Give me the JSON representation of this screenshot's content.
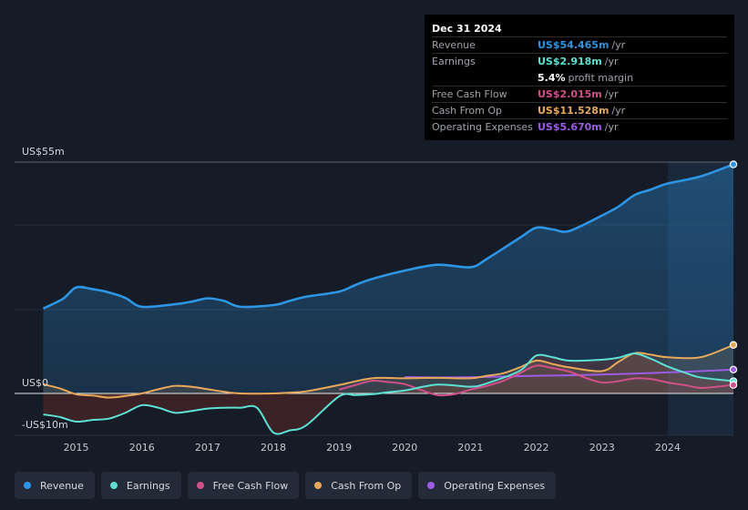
{
  "chart_data": {
    "type": "line",
    "y_unit_labels": {
      "top": "US$55m",
      "zero": "US$0",
      "bottom": "-US$10m"
    },
    "ylim": [
      -10,
      55
    ],
    "xlim": [
      2014.5,
      2025.0
    ],
    "x_ticks": [
      "2015",
      "2016",
      "2017",
      "2018",
      "2019",
      "2020",
      "2021",
      "2022",
      "2023",
      "2024"
    ],
    "forecast_shade_start": 2024.0,
    "series": [
      {
        "name": "Revenue",
        "key": "revenue",
        "color": "#2d95e3",
        "fill": true,
        "points": [
          [
            2014.5,
            20.2
          ],
          [
            2014.8,
            22.5
          ],
          [
            2015.0,
            25.2
          ],
          [
            2015.25,
            24.8
          ],
          [
            2015.5,
            24.0
          ],
          [
            2015.75,
            22.7
          ],
          [
            2016.0,
            20.6
          ],
          [
            2016.5,
            21.2
          ],
          [
            2016.75,
            21.8
          ],
          [
            2017.0,
            22.6
          ],
          [
            2017.25,
            22.0
          ],
          [
            2017.5,
            20.6
          ],
          [
            2018.0,
            21.0
          ],
          [
            2018.25,
            22.0
          ],
          [
            2018.5,
            23.0
          ],
          [
            2019.0,
            24.2
          ],
          [
            2019.25,
            25.8
          ],
          [
            2019.5,
            27.2
          ],
          [
            2020.0,
            29.2
          ],
          [
            2020.5,
            30.6
          ],
          [
            2021.0,
            30.0
          ],
          [
            2021.25,
            32.0
          ],
          [
            2021.75,
            37.0
          ],
          [
            2022.0,
            39.4
          ],
          [
            2022.25,
            39.0
          ],
          [
            2022.5,
            38.6
          ],
          [
            2023.0,
            42.3
          ],
          [
            2023.25,
            44.4
          ],
          [
            2023.5,
            47.2
          ],
          [
            2023.75,
            48.5
          ],
          [
            2024.0,
            49.9
          ],
          [
            2024.5,
            51.6
          ],
          [
            2025.0,
            54.465
          ]
        ]
      },
      {
        "name": "Earnings",
        "key": "earnings",
        "color": "#5ee0d3",
        "fill": true,
        "points": [
          [
            2014.5,
            -5.0
          ],
          [
            2014.75,
            -5.6
          ],
          [
            2015.0,
            -6.7
          ],
          [
            2015.25,
            -6.3
          ],
          [
            2015.5,
            -6.0
          ],
          [
            2015.75,
            -4.6
          ],
          [
            2016.0,
            -2.8
          ],
          [
            2016.25,
            -3.4
          ],
          [
            2016.5,
            -4.6
          ],
          [
            2016.75,
            -4.2
          ],
          [
            2017.0,
            -3.6
          ],
          [
            2017.25,
            -3.4
          ],
          [
            2017.5,
            -3.4
          ],
          [
            2017.75,
            -3.4
          ],
          [
            2018.0,
            -9.3
          ],
          [
            2018.25,
            -8.8
          ],
          [
            2018.5,
            -7.6
          ],
          [
            2019.0,
            -0.7
          ],
          [
            2019.25,
            -0.4
          ],
          [
            2019.5,
            -0.2
          ],
          [
            2019.75,
            0.3
          ],
          [
            2020.0,
            0.7
          ],
          [
            2020.5,
            2.1
          ],
          [
            2021.0,
            1.6
          ],
          [
            2021.25,
            2.4
          ],
          [
            2021.75,
            5.4
          ],
          [
            2022.0,
            9.0
          ],
          [
            2022.25,
            8.6
          ],
          [
            2022.5,
            7.8
          ],
          [
            2023.0,
            8.0
          ],
          [
            2023.25,
            8.5
          ],
          [
            2023.5,
            9.5
          ],
          [
            2023.75,
            8.2
          ],
          [
            2024.0,
            6.4
          ],
          [
            2024.25,
            5.0
          ],
          [
            2024.5,
            3.8
          ],
          [
            2025.0,
            2.918
          ]
        ]
      },
      {
        "name": "Free Cash Flow",
        "key": "fcf",
        "color": "#d0508a",
        "fill": false,
        "points": [
          [
            2019.0,
            0.9
          ],
          [
            2019.25,
            2.0
          ],
          [
            2019.5,
            3.0
          ],
          [
            2019.75,
            2.7
          ],
          [
            2020.0,
            2.2
          ],
          [
            2020.25,
            0.8
          ],
          [
            2020.5,
            -0.4
          ],
          [
            2020.75,
            -0.2
          ],
          [
            2021.0,
            0.9
          ],
          [
            2021.25,
            1.8
          ],
          [
            2021.5,
            3.0
          ],
          [
            2021.75,
            4.8
          ],
          [
            2022.0,
            6.6
          ],
          [
            2022.25,
            6.0
          ],
          [
            2022.5,
            5.2
          ],
          [
            2023.0,
            2.6
          ],
          [
            2023.5,
            3.6
          ],
          [
            2023.75,
            3.4
          ],
          [
            2024.0,
            2.6
          ],
          [
            2024.25,
            2.0
          ],
          [
            2024.5,
            1.3
          ],
          [
            2024.75,
            1.6
          ],
          [
            2025.0,
            2.015
          ]
        ]
      },
      {
        "name": "Cash From Op",
        "key": "cfo",
        "color": "#e8a85a",
        "fill": true,
        "points": [
          [
            2014.5,
            2.2
          ],
          [
            2014.75,
            1.2
          ],
          [
            2015.0,
            -0.2
          ],
          [
            2015.25,
            -0.5
          ],
          [
            2015.5,
            -1.0
          ],
          [
            2015.75,
            -0.6
          ],
          [
            2016.0,
            0.0
          ],
          [
            2016.25,
            1.0
          ],
          [
            2016.5,
            1.8
          ],
          [
            2016.75,
            1.6
          ],
          [
            2017.0,
            1.0
          ],
          [
            2017.25,
            0.4
          ],
          [
            2017.5,
            0.0
          ],
          [
            2018.0,
            0.0
          ],
          [
            2018.25,
            0.2
          ],
          [
            2018.5,
            0.5
          ],
          [
            2019.0,
            2.0
          ],
          [
            2019.5,
            3.6
          ],
          [
            2020.0,
            3.6
          ],
          [
            2020.5,
            3.7
          ],
          [
            2021.0,
            3.6
          ],
          [
            2021.25,
            4.2
          ],
          [
            2021.5,
            4.8
          ],
          [
            2021.75,
            6.2
          ],
          [
            2022.0,
            7.8
          ],
          [
            2022.25,
            7.0
          ],
          [
            2022.5,
            6.2
          ],
          [
            2023.0,
            5.3
          ],
          [
            2023.25,
            7.5
          ],
          [
            2023.5,
            9.6
          ],
          [
            2023.75,
            9.2
          ],
          [
            2024.0,
            8.6
          ],
          [
            2024.5,
            8.6
          ],
          [
            2025.0,
            11.528
          ]
        ]
      },
      {
        "name": "Operating Expenses",
        "key": "opex",
        "color": "#9d5ce6",
        "fill": false,
        "points": [
          [
            2020.0,
            3.9
          ],
          [
            2020.5,
            3.8
          ],
          [
            2021.0,
            3.85
          ],
          [
            2021.5,
            4.0
          ],
          [
            2022.0,
            4.2
          ],
          [
            2022.5,
            4.3
          ],
          [
            2023.0,
            4.5
          ],
          [
            2023.5,
            4.7
          ],
          [
            2024.0,
            5.0
          ],
          [
            2024.5,
            5.3
          ],
          [
            2025.0,
            5.67
          ]
        ]
      }
    ]
  },
  "tooltip": {
    "date": "Dec 31 2024",
    "rows": [
      {
        "label": "Revenue",
        "value": "US$54.465m",
        "unit": "/yr",
        "color": "#2d95e3"
      },
      {
        "label": "Earnings",
        "value": "US$2.918m",
        "unit": "/yr",
        "color": "#5ee0d3"
      },
      {
        "label": "",
        "value": "5.4%",
        "unit": "profit margin",
        "color": "#ffffff"
      },
      {
        "label": "Free Cash Flow",
        "value": "US$2.015m",
        "unit": "/yr",
        "color": "#d0508a"
      },
      {
        "label": "Cash From Op",
        "value": "US$11.528m",
        "unit": "/yr",
        "color": "#e8a85a"
      },
      {
        "label": "Operating Expenses",
        "value": "US$5.670m",
        "unit": "/yr",
        "color": "#9d5ce6"
      }
    ]
  },
  "legend": [
    {
      "label": "Revenue",
      "color": "#2d95e3"
    },
    {
      "label": "Earnings",
      "color": "#5ee0d3"
    },
    {
      "label": "Free Cash Flow",
      "color": "#d0508a"
    },
    {
      "label": "Cash From Op",
      "color": "#e8a85a"
    },
    {
      "label": "Operating Expenses",
      "color": "#9d5ce6"
    }
  ]
}
